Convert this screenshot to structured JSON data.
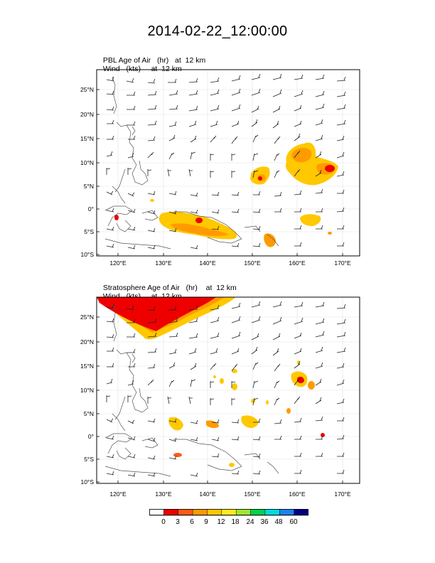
{
  "title": "2014-02-22_12:00:00",
  "panels": [
    {
      "id": "pbl",
      "line1_field": "PBL Age of Air",
      "line1_units": "(hr)",
      "line1_level": "at  12 km",
      "line2_field": "Wind",
      "line2_units": "(kts)",
      "line2_level": "at  12 km"
    },
    {
      "id": "strat",
      "line1_field": "Stratosphere Age of Air",
      "line1_units": "(hr)",
      "line1_level": "at  12 km",
      "line2_field": "Wind",
      "line2_units": "(kts)",
      "line2_level": "at  12 km"
    }
  ],
  "axes": {
    "lat_labels": [
      "25°N",
      "20°N",
      "15°N",
      "10°N",
      "5°N",
      "0°",
      "5°S",
      "10°S"
    ],
    "lon_labels": [
      "120°E",
      "130°E",
      "140°E",
      "150°E",
      "160°E",
      "170°E"
    ]
  },
  "colorbar": {
    "labels": [
      "0",
      "3",
      "6",
      "9",
      "12",
      "18",
      "24",
      "36",
      "48",
      "60"
    ],
    "colors": [
      "#ffffff",
      "#ee0000",
      "#ff5a14",
      "#ff9b00",
      "#ffc800",
      "#ffeb1e",
      "#a0e632",
      "#00d24b",
      "#00dcdc",
      "#1e82f0",
      "#000082"
    ]
  },
  "chart_data": {
    "type": "heatmap",
    "title": "2014-02-22_12:00:00",
    "x_range": [
      115,
      174
    ],
    "y_range": [
      -10,
      28
    ],
    "x_ticks": [
      120,
      130,
      140,
      150,
      160,
      170
    ],
    "y_ticks": [
      25,
      20,
      15,
      10,
      5,
      0,
      -5,
      -10
    ],
    "levels": [
      0,
      3,
      6,
      9,
      12,
      18,
      24,
      36,
      48,
      60
    ],
    "series": [
      {
        "name": "PBL Age of Air (hr) at 12 km"
      },
      {
        "name": "Stratosphere Age of Air (hr) at 12 km"
      }
    ]
  }
}
